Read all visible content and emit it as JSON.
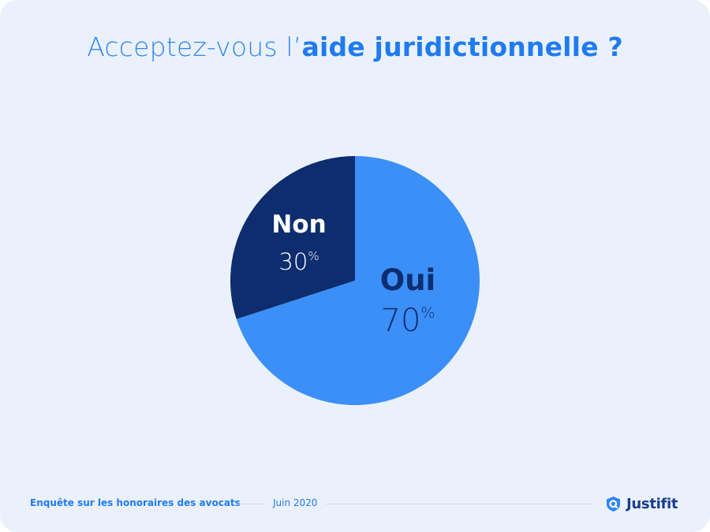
{
  "title": {
    "prefix": "Acceptez-vous l’",
    "emphasis": "aide juridictionnelle ?"
  },
  "chart_data": {
    "type": "pie",
    "title": "Acceptez-vous l’aide juridictionnelle ?",
    "slices": [
      {
        "label": "Oui",
        "value": 70,
        "value_text": "70",
        "unit": "%",
        "color": "#3b8ff7",
        "text_color": "#0d2d6e"
      },
      {
        "label": "Non",
        "value": 30,
        "value_text": "30",
        "unit": "%",
        "color": "#0d2d6e",
        "text_color": "#ffffff"
      }
    ]
  },
  "footer": {
    "survey": "Enquête sur les honoraires des avocats",
    "date": "Juin 2020",
    "brand": "Justifit"
  },
  "colors": {
    "background": "#ebf1fc",
    "accent": "#1f7bf0",
    "dark": "#0d2d6e",
    "light_slice": "#3b8ff7"
  }
}
